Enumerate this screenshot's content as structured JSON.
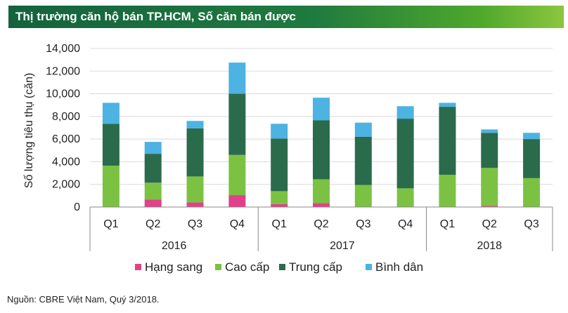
{
  "header": {
    "title": "Thị trường căn hộ bán TP.HCM, Số căn bán được"
  },
  "footer": {
    "source": "Nguồn: CBRE Việt Nam, Quý 3/2018."
  },
  "chart_data": {
    "type": "bar",
    "stacked": true,
    "ylabel": "Số lượng tiêu thụ (căn)",
    "ylim": [
      0,
      14000
    ],
    "yticks": [
      {
        "value": 0,
        "label": "0"
      },
      {
        "value": 2000,
        "label": "2,000"
      },
      {
        "value": 4000,
        "label": "4,000"
      },
      {
        "value": 6000,
        "label": "6,000"
      },
      {
        "value": 8000,
        "label": "8,000"
      },
      {
        "value": 10000,
        "label": "10,000"
      },
      {
        "value": 12000,
        "label": "12,000"
      },
      {
        "value": 14000,
        "label": "14,000"
      }
    ],
    "categories": [
      "Q1",
      "Q2",
      "Q3",
      "Q4",
      "Q1",
      "Q2",
      "Q3",
      "Q4",
      "Q1",
      "Q2",
      "Q3"
    ],
    "groups": [
      {
        "label": "2016",
        "count": 4
      },
      {
        "label": "2017",
        "count": 4
      },
      {
        "label": "2018",
        "count": 3
      }
    ],
    "series": [
      {
        "name": "Hạng sang",
        "color": "#e2408a",
        "values": [
          0,
          650,
          400,
          1050,
          250,
          350,
          0,
          0,
          0,
          100,
          0
        ]
      },
      {
        "name": "Cao cấp",
        "color": "#7cc242",
        "values": [
          3650,
          1500,
          2300,
          3550,
          1150,
          2100,
          1950,
          1650,
          2850,
          3350,
          2550
        ]
      },
      {
        "name": "Trung cấp",
        "color": "#2a6b4c",
        "values": [
          3700,
          2550,
          4250,
          5400,
          4650,
          5200,
          4250,
          6150,
          6000,
          3100,
          3450
        ]
      },
      {
        "name": "Bình dân",
        "color": "#4cb3e2",
        "values": [
          1850,
          1050,
          650,
          2750,
          1300,
          2000,
          1250,
          1100,
          350,
          300,
          550
        ]
      }
    ]
  }
}
